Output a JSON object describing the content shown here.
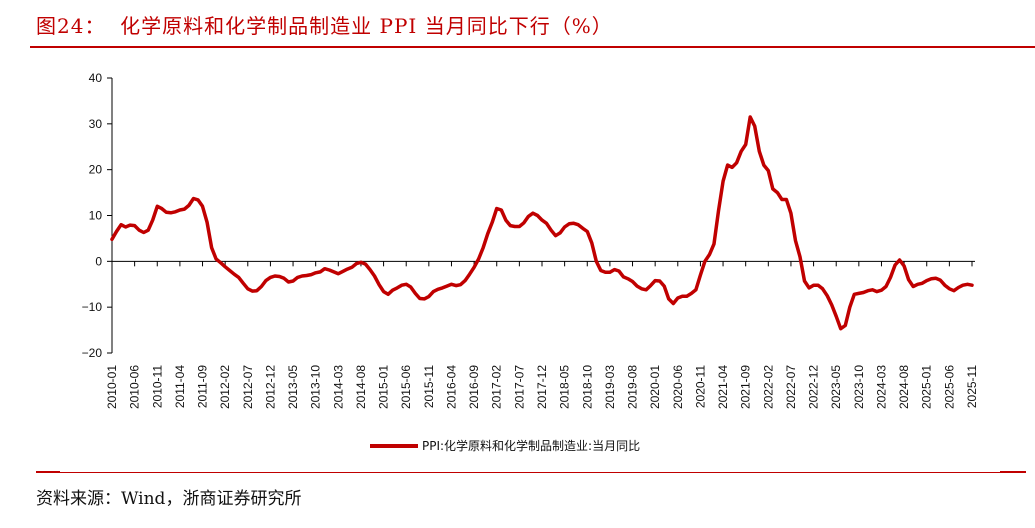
{
  "header": {
    "title": "图24：  化学原料和化学制品制造业 PPI 当月同比下行（%）"
  },
  "footer": {
    "source": "资料来源：Wind，浙商证券研究所"
  },
  "colors": {
    "accent": "#c00000",
    "series": "#c00000"
  },
  "chart_data": {
    "type": "line",
    "title": "",
    "xlabel": "",
    "ylabel": "",
    "ylim": [
      -20,
      40
    ],
    "y_ticks": [
      "40",
      "30",
      "20",
      "10",
      "0",
      "−10",
      "−20"
    ],
    "y_tick_values": [
      40,
      30,
      20,
      10,
      0,
      -10,
      -20
    ],
    "grid": false,
    "legend_position": "bottom",
    "x_tick_labels": [
      "2010-01",
      "2010-06",
      "2010-11",
      "2011-04",
      "2011-09",
      "2012-02",
      "2012-07",
      "2012-12",
      "2013-05",
      "2013-10",
      "2014-03",
      "2014-08",
      "2015-01",
      "2015-06",
      "2015-11",
      "2016-04",
      "2016-09",
      "2017-02",
      "2017-07",
      "2017-12",
      "2018-05",
      "2018-10",
      "2019-03",
      "2019-08",
      "2020-01",
      "2020-06",
      "2020-11",
      "2021-04",
      "2021-09",
      "2022-02",
      "2022-07",
      "2022-12",
      "2023-05",
      "2023-10",
      "2024-03",
      "2024-08",
      "2025-01",
      "2025-06",
      "2025-11"
    ],
    "series": [
      {
        "name": "PPI:化学原料和化学制品制造业:当月同比",
        "values": [
          4.8,
          6.5,
          8.0,
          7.5,
          7.9,
          7.8,
          6.8,
          6.3,
          6.8,
          9.0,
          12.0,
          11.5,
          10.7,
          10.6,
          10.8,
          11.2,
          11.4,
          12.2,
          13.7,
          13.4,
          12.0,
          8.5,
          3.0,
          0.5,
          -0.3,
          -1.2,
          -2.0,
          -2.8,
          -3.5,
          -4.8,
          -6.0,
          -6.5,
          -6.4,
          -5.5,
          -4.2,
          -3.5,
          -3.2,
          -3.3,
          -3.7,
          -4.5,
          -4.3,
          -3.5,
          -3.2,
          -3.1,
          -2.9,
          -2.5,
          -2.3,
          -1.6,
          -1.9,
          -2.3,
          -2.7,
          -2.2,
          -1.7,
          -1.3,
          -0.5,
          -0.2,
          -0.6,
          -1.8,
          -3.2,
          -5.1,
          -6.6,
          -7.2,
          -6.3,
          -5.8,
          -5.2,
          -5.0,
          -5.6,
          -7.0,
          -8.1,
          -8.2,
          -7.7,
          -6.6,
          -6.1,
          -5.8,
          -5.4,
          -5.0,
          -5.3,
          -5.1,
          -4.2,
          -2.8,
          -1.3,
          0.5,
          3.0,
          6.0,
          8.5,
          11.5,
          11.2,
          9.0,
          7.8,
          7.6,
          7.6,
          8.4,
          9.8,
          10.5,
          10.0,
          9.0,
          8.3,
          6.8,
          5.6,
          6.2,
          7.5,
          8.2,
          8.3,
          8.0,
          7.2,
          6.5,
          4.0,
          0.0,
          -2.0,
          -2.4,
          -2.4,
          -1.8,
          -2.1,
          -3.4,
          -3.8,
          -4.4,
          -5.4,
          -6.0,
          -6.2,
          -5.3,
          -4.2,
          -4.3,
          -5.4,
          -8.2,
          -9.2,
          -8.0,
          -7.6,
          -7.6,
          -7.0,
          -6.2,
          -3.0,
          0.0,
          1.5,
          3.8,
          11.0,
          17.5,
          21.0,
          20.5,
          21.5,
          24.0,
          25.5,
          31.5,
          29.5,
          24.0,
          21.0,
          19.8,
          15.8,
          15.0,
          13.5,
          13.5,
          10.5,
          4.5,
          1.0,
          -4.3,
          -5.8,
          -5.2,
          -5.2,
          -6.0,
          -7.5,
          -9.5,
          -12.0,
          -14.7,
          -14.0,
          -10.0,
          -7.2,
          -7.0,
          -6.8,
          -6.4,
          -6.2,
          -6.6,
          -6.3,
          -5.5,
          -3.5,
          -0.8,
          0.3,
          -1.0,
          -4.0,
          -5.5,
          -5.0,
          -4.8,
          -4.2,
          -3.8,
          -3.7,
          -4.1,
          -5.2,
          -6.0,
          -6.4,
          -5.7,
          -5.2,
          -5.0,
          -5.2
        ]
      }
    ]
  }
}
